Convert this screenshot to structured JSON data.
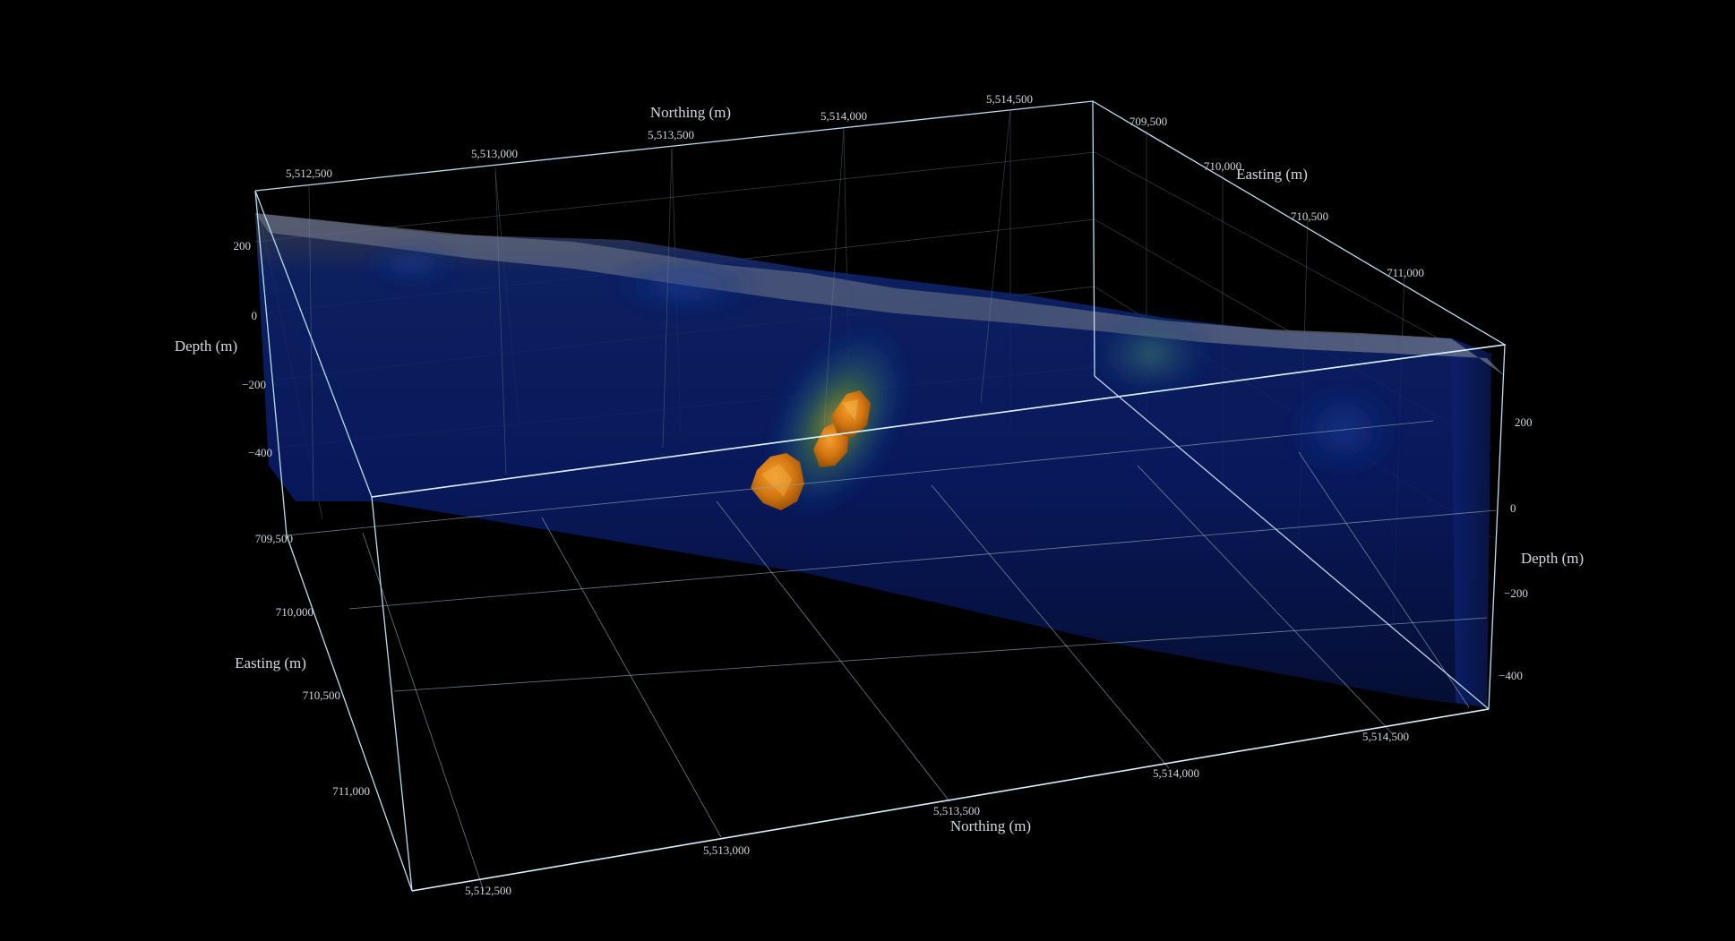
{
  "viewer": {
    "background_color": "#000000",
    "frame_color": "#b9dff0",
    "volume_colormap": [
      "#000a3a",
      "#0a1f7a",
      "#1c5a8a",
      "#4a8a3a",
      "#c08a10",
      "#e07a10"
    ],
    "isosurface_color": "#e07a10"
  },
  "axes": {
    "northing_top": {
      "title": "Northing (m)",
      "ticks": [
        "5,512,500",
        "5,513,000",
        "5,513,500",
        "5,514,000",
        "5,514,500"
      ]
    },
    "northing_bottom": {
      "title": "Northing (m)",
      "ticks": [
        "5,512,500",
        "5,513,000",
        "5,513,500",
        "5,514,000",
        "5,514,500"
      ]
    },
    "easting_left": {
      "title": "Easting (m)",
      "ticks": [
        "709,500",
        "710,000",
        "710,500",
        "711,000"
      ]
    },
    "easting_right": {
      "title": "Easting (m)",
      "ticks": [
        "709,500",
        "710,000",
        "710,500",
        "711,000"
      ]
    },
    "depth_left": {
      "title": "Depth (m)",
      "ticks": [
        "200",
        "0",
        "−200",
        "−400"
      ]
    },
    "depth_right": {
      "title": "Depth (m)",
      "ticks": [
        "200",
        "0",
        "−200",
        "−400"
      ]
    }
  }
}
